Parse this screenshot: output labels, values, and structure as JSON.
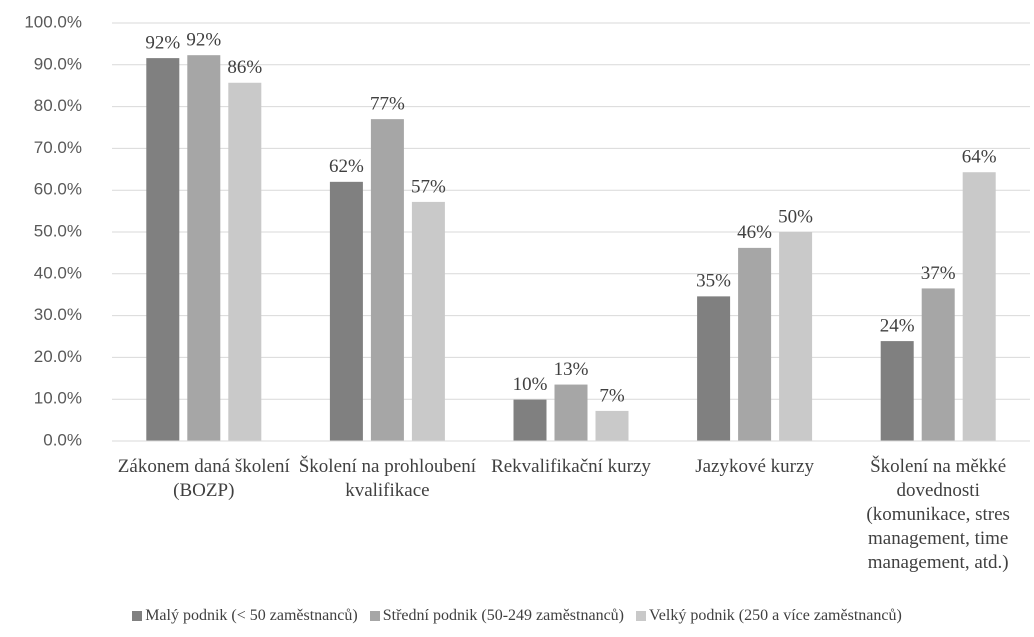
{
  "chart_data": {
    "type": "bar",
    "categories": [
      "Zákonem daná školení (BOZP)",
      "Školení na prohloubení kvalifikace",
      "Rekvalifikační kurzy",
      "Jazykové kurzy",
      "Školení na měkké dovednosti (komunikace, stres management, time management, atd.)"
    ],
    "series": [
      {
        "name": "Malý podnik (< 50 zaměstnanců)",
        "color": "#808080",
        "values": [
          91.6,
          62.0,
          9.9,
          34.6,
          23.9
        ],
        "value_labels": [
          "92%",
          "62%",
          "10%",
          "35%",
          "24%"
        ]
      },
      {
        "name": "Střední podnik (50-249 zaměstnanců)",
        "color": "#a6a6a6",
        "values": [
          92.3,
          77.0,
          13.5,
          46.2,
          36.5
        ],
        "value_labels": [
          "92%",
          "77%",
          "13%",
          "46%",
          "37%"
        ]
      },
      {
        "name": "Velký podnik (250 a více zaměstnanců)",
        "color": "#c9c9c9",
        "values": [
          85.7,
          57.2,
          7.2,
          50.0,
          64.3
        ],
        "value_labels": [
          "86%",
          "57%",
          "7%",
          "50%",
          "64%"
        ]
      }
    ],
    "ylim": [
      0,
      100
    ],
    "yticks": [
      {
        "value": 0,
        "label": "0.0%"
      },
      {
        "value": 10,
        "label": "10.0%"
      },
      {
        "value": 20,
        "label": "20.0%"
      },
      {
        "value": 30,
        "label": "30.0%"
      },
      {
        "value": 40,
        "label": "40.0%"
      },
      {
        "value": 50,
        "label": "50.0%"
      },
      {
        "value": 60,
        "label": "60.0%"
      },
      {
        "value": 70,
        "label": "70.0%"
      },
      {
        "value": 80,
        "label": "80.0%"
      },
      {
        "value": 90,
        "label": "90.0%"
      },
      {
        "value": 100,
        "label": "100.0%"
      }
    ],
    "grid": true,
    "legend": "bottom"
  }
}
